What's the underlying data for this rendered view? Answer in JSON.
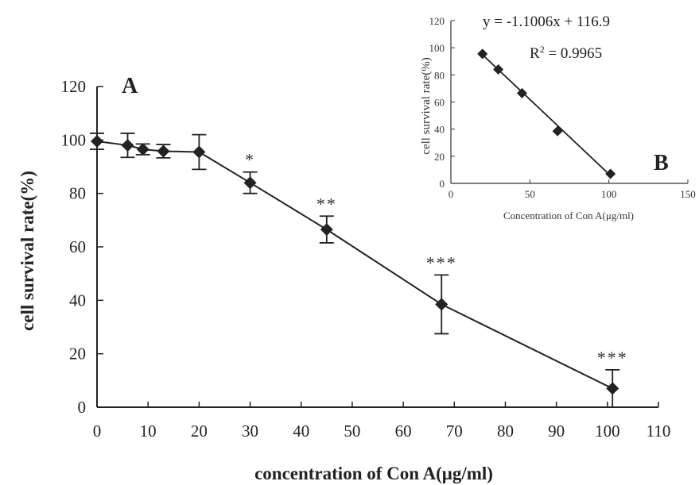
{
  "chart_data": [
    {
      "type": "line",
      "panel_label": "A",
      "xlabel": "concentration of Con A(μg/ml)",
      "ylabel": "cell survival rate(%)",
      "xlim": [
        0,
        110
      ],
      "ylim": [
        0,
        120
      ],
      "xticks": [
        "0",
        "10",
        "20",
        "30",
        "40",
        "50",
        "60",
        "70",
        "80",
        "90",
        "100",
        "110"
      ],
      "yticks": [
        "0",
        "20",
        "40",
        "60",
        "80",
        "100",
        "120"
      ],
      "x": [
        0,
        6,
        9,
        13,
        20,
        30,
        45,
        67.5,
        101
      ],
      "y": [
        99.5,
        98,
        96.5,
        95.8,
        95.5,
        84,
        66.5,
        38.5,
        7
      ],
      "error": [
        3,
        4.5,
        2,
        2.5,
        6.5,
        4,
        5,
        11,
        7
      ],
      "significance": [
        "",
        "",
        "",
        "",
        "",
        "*",
        "**",
        "***",
        "***"
      ],
      "grid": false
    },
    {
      "type": "scatter",
      "panel_label": "B",
      "xlabel": "Concentration of Con A(μg/ml)",
      "ylabel": "cell survival rate(%)",
      "xlim": [
        0,
        150
      ],
      "ylim": [
        0,
        120
      ],
      "xticks": [
        "0",
        "50",
        "100",
        "150"
      ],
      "yticks": [
        "0",
        "20",
        "40",
        "60",
        "80",
        "100",
        "120"
      ],
      "x": [
        20,
        30,
        45,
        67.5,
        101
      ],
      "y": [
        95.5,
        84,
        66.5,
        38.5,
        7
      ],
      "fit": {
        "slope": -1.1006,
        "intercept": 116.9
      },
      "equation": "y = -1.1006x + 116.9",
      "r2_label": "R",
      "r2_sup": "2",
      "r2_value": " = 0.9965",
      "grid": false
    }
  ]
}
